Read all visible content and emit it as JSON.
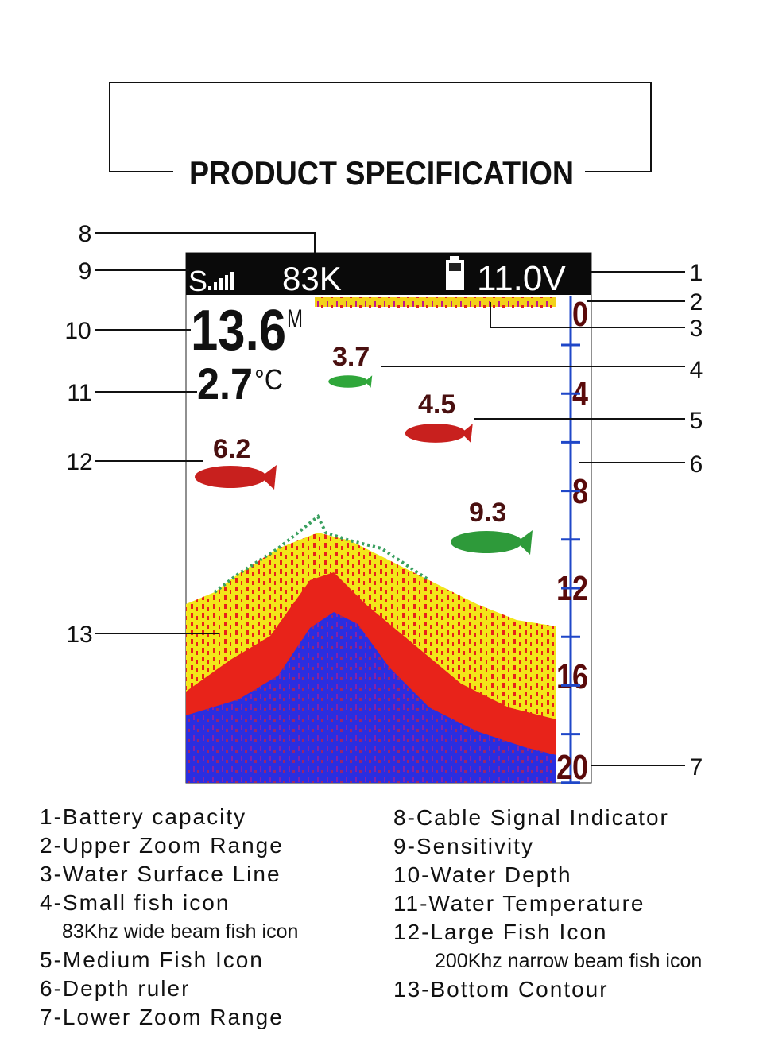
{
  "title": "PRODUCT SPECIFICATION",
  "screen": {
    "frequency": "83K",
    "voltage": "11.0V",
    "depth": "13.6",
    "depth_unit": "M",
    "temperature": "2.7",
    "temperature_unit": "°C",
    "fish": [
      "3.7",
      "4.5",
      "6.2",
      "9.3"
    ],
    "ruler": [
      "0",
      "4",
      "8",
      "12",
      "16",
      "20"
    ]
  },
  "callouts": [
    "1",
    "2",
    "3",
    "4",
    "5",
    "6",
    "7",
    "8",
    "9",
    "10",
    "11",
    "12",
    "13"
  ],
  "legend": {
    "left": [
      {
        "label": "1-Battery capacity"
      },
      {
        "label": "2-Upper Zoom Range"
      },
      {
        "label": "3-Water Surface Line"
      },
      {
        "label": "4-Small fish icon",
        "note": "83Khz wide beam fish icon"
      },
      {
        "label": "5-Medium Fish Icon"
      },
      {
        "label": "6-Depth ruler"
      },
      {
        "label": "7-Lower Zoom Range"
      }
    ],
    "right": [
      {
        "label": "8-Cable Signal Indicator"
      },
      {
        "label": "9-Sensitivity"
      },
      {
        "label": "10-Water Depth"
      },
      {
        "label": "11-Water Temperature"
      },
      {
        "label": "12-Large Fish Icon",
        "note": "200Khz narrow beam fish icon"
      },
      {
        "label": "13-Bottom Contour"
      }
    ]
  }
}
